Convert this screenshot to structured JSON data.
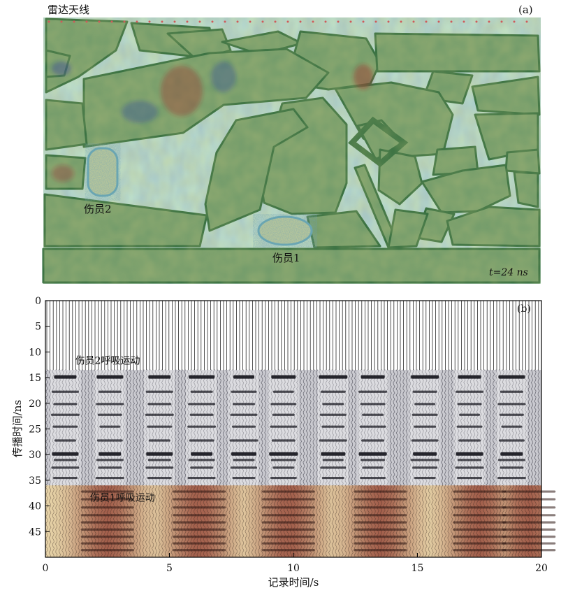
{
  "panel_a": {
    "tag": "(a)",
    "antenna_label": "雷达天线",
    "victim2_label": "伤员2",
    "victim1_label": "伤员1",
    "time_label": "t=24 ns"
  },
  "chart_data": {
    "type": "heatmap",
    "panel": "(b)",
    "xlabel": "记录时间/s",
    "ylabel": "传播时间/ns",
    "xlim": [
      0,
      20
    ],
    "ylim": [
      50,
      0
    ],
    "xticks": [
      0,
      5,
      10,
      15,
      20
    ],
    "yticks": [
      0,
      5,
      10,
      15,
      20,
      25,
      30,
      35,
      40,
      45
    ],
    "grid": false,
    "annotations": [
      {
        "text": "伤员2呼吸运动",
        "x": 1.2,
        "y": 12.3
      },
      {
        "text": "伤员1呼吸运动",
        "x": 1.8,
        "y": 39.0
      }
    ],
    "direct_wave_end_ns": 13.5,
    "highlight_band_start_ns": 36,
    "reflection_rows_ns": [
      14.8,
      17.8,
      20.2,
      22.3,
      24.6,
      27.3,
      29.8,
      31.1,
      32.6,
      34.6
    ],
    "victim2_pulse_centers_s": [
      0.8,
      2.6,
      4.6,
      6.3,
      8.0,
      9.6,
      11.6,
      13.2,
      15.3,
      17.1,
      18.8
    ],
    "victim1_breathing_highs_s": [
      2.5,
      6.2,
      9.8,
      13.5,
      17.5,
      19.5
    ],
    "victim1_band_rows_ns": [
      37.2,
      38.7,
      40.3,
      41.8,
      43.2,
      44.6,
      46.0,
      47.3,
      48.6
    ]
  }
}
